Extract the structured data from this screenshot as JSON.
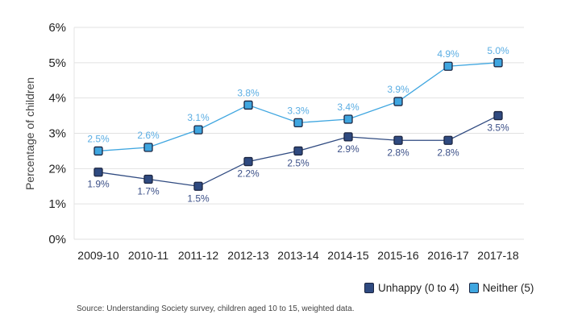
{
  "chart_data": {
    "type": "line",
    "title": "",
    "xlabel": "",
    "ylabel": "Percentage of children",
    "ylim": [
      0,
      6
    ],
    "yticks": [
      "0%",
      "1%",
      "2%",
      "3%",
      "4%",
      "5%",
      "6%"
    ],
    "grid": true,
    "legend_position": "bottom-right",
    "categories": [
      "2009-10",
      "2010-11",
      "2011-12",
      "2012-13",
      "2013-14",
      "2014-15",
      "2015-16",
      "2016-17",
      "2017-18"
    ],
    "series": [
      {
        "name": "Unhappy (0 to 4)",
        "color": "#2f4a80",
        "label_color": "#3c5088",
        "label_position": "below",
        "values": [
          1.9,
          1.7,
          1.5,
          2.2,
          2.5,
          2.9,
          2.8,
          2.8,
          3.5
        ],
        "labels": [
          "1.9%",
          "1.7%",
          "1.5%",
          "2.2%",
          "2.5%",
          "2.9%",
          "2.8%",
          "2.8%",
          "3.5%"
        ]
      },
      {
        "name": "Neither (5)",
        "color": "#3fa6e0",
        "label_color": "#5aade3",
        "label_position": "above",
        "values": [
          2.5,
          2.6,
          3.1,
          3.8,
          3.3,
          3.4,
          3.9,
          4.9,
          5.0
        ],
        "labels": [
          "2.5%",
          "2.6%",
          "3.1%",
          "3.8%",
          "3.3%",
          "3.4%",
          "3.9%",
          "4.9%",
          "5.0%"
        ]
      }
    ],
    "source": "Source: Understanding Society survey, children aged 10 to 15, weighted data."
  }
}
